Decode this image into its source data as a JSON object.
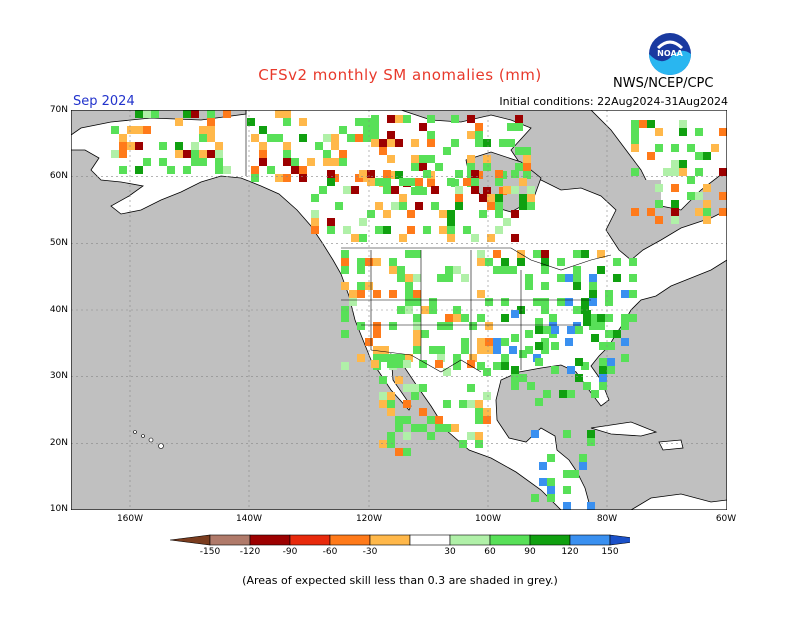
{
  "header": {
    "title": "CFSv2 monthly SM anomalies (mm)",
    "month": "Sep 2024",
    "initial_conditions": "Initial conditions: 22Aug2024-31Aug2024",
    "agency": "NWS/NCEP/CPC",
    "logo_text": "NOAA"
  },
  "map": {
    "lat_labels": [
      "70N",
      "60N",
      "50N",
      "40N",
      "30N",
      "20N",
      "10N"
    ],
    "lon_labels": [
      "160W",
      "140W",
      "120W",
      "100W",
      "80W",
      "60W"
    ],
    "colors": {
      "ocean": "#c0c0c0",
      "land": "#ffffff",
      "grey_skill": "#c0c0c0"
    }
  },
  "colorbar": {
    "labels": [
      "-150",
      "-120",
      "-90",
      "-60",
      "-30",
      "30",
      "60",
      "90",
      "120",
      "150"
    ],
    "colors": [
      "#7a3c1e",
      "#b07a6a",
      "#9c0000",
      "#e82a0c",
      "#ff7a1a",
      "#ffb84a",
      "#ffffff",
      "#b0f0a8",
      "#58e058",
      "#10a010",
      "#3a90f0",
      "#1a50c8"
    ]
  },
  "footer": {
    "note": "(Areas of expected skill less than 0.3 are shaded in grey.)"
  }
}
